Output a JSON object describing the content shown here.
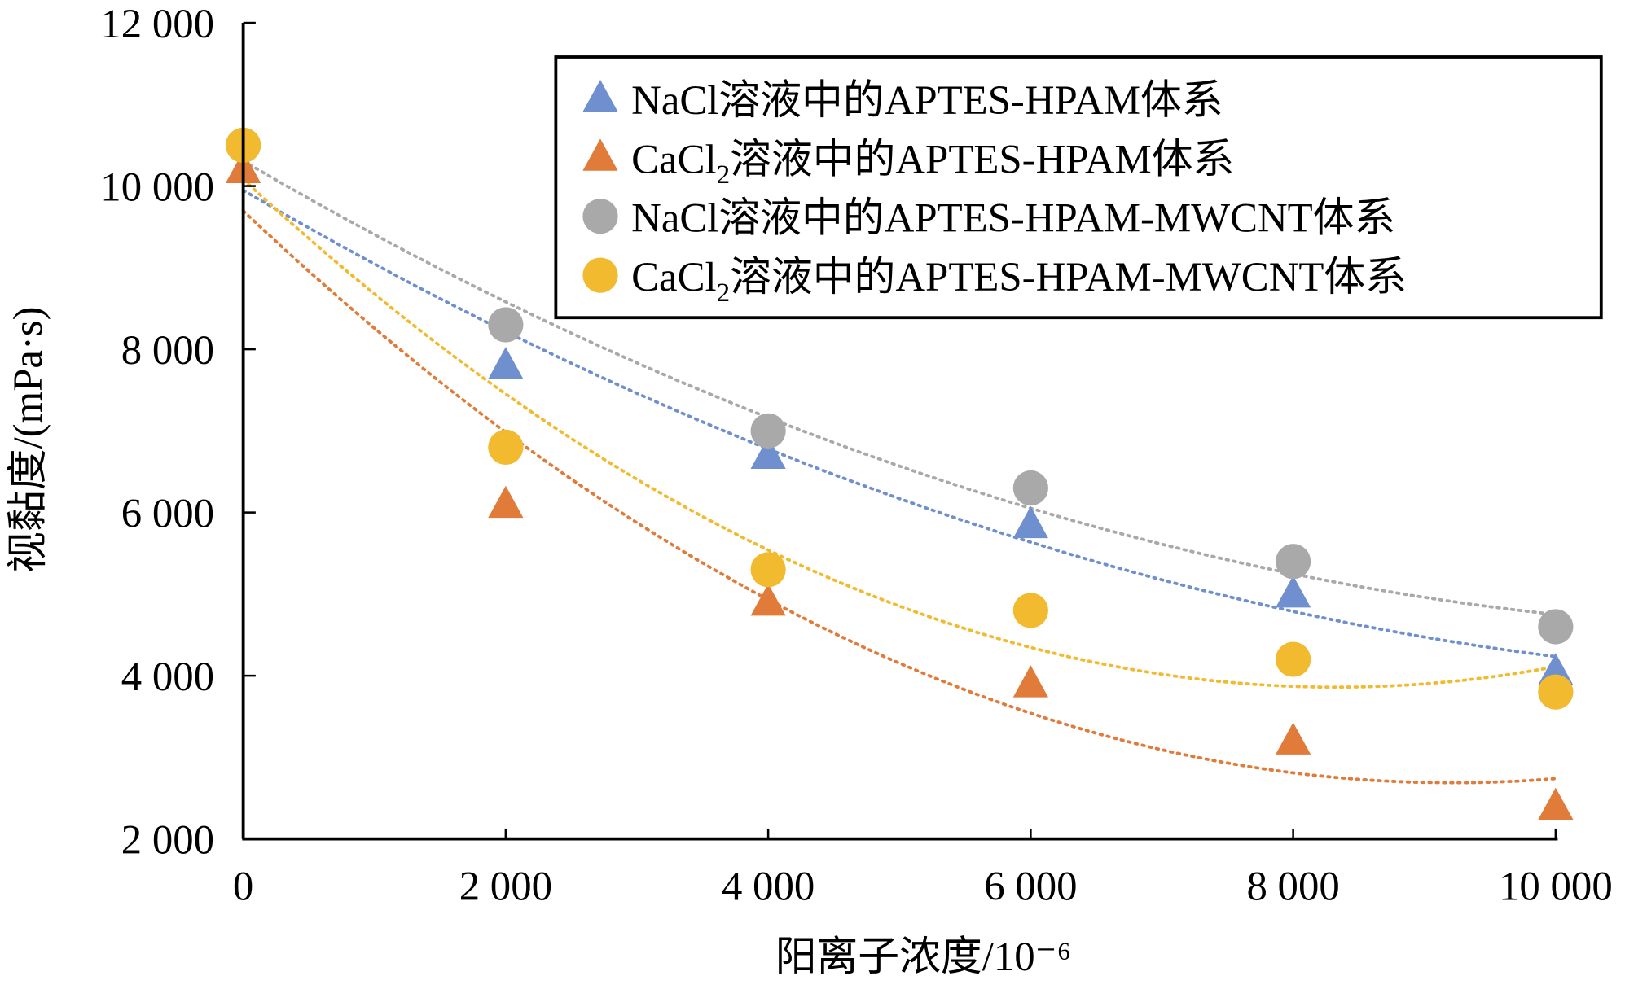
{
  "chart_data": {
    "type": "scatter",
    "title": "",
    "xlabel": "阳离子浓度/10⁻⁶",
    "ylabel": "视黏度/(mPa·s)",
    "xlim": [
      0,
      10000
    ],
    "ylim": [
      2000,
      12000
    ],
    "x_ticks": [
      0,
      2000,
      4000,
      6000,
      8000,
      10000
    ],
    "x_tick_labels": [
      "0",
      "2 000",
      "4 000",
      "6 000",
      "8 000",
      "10 000"
    ],
    "y_ticks": [
      2000,
      4000,
      6000,
      8000,
      10000,
      12000
    ],
    "y_tick_labels": [
      "2 000",
      "4 000",
      "6 000",
      "8 000",
      "10 000",
      "12 000"
    ],
    "grid": false,
    "legend_placement": "top-right",
    "trendline": "polynomial order 2, dotted",
    "x": [
      0,
      2000,
      4000,
      6000,
      8000,
      10000
    ],
    "series": [
      {
        "name": "NaCl溶液中的APTES-HPAM体系",
        "name_parts": [
          "NaCl",
          "",
          "溶液中的APTES-HPAM体系"
        ],
        "marker": "triangle",
        "color": "#6F8FCF",
        "values": [
          10200,
          7800,
          6700,
          5850,
          5000,
          4050
        ]
      },
      {
        "name": "CaCl2溶液中的APTES-HPAM体系",
        "name_parts": [
          "CaCl",
          "2",
          "溶液中的APTES-HPAM体系"
        ],
        "marker": "triangle",
        "color": "#E07B39",
        "values": [
          10200,
          6100,
          4900,
          3900,
          3200,
          2400
        ]
      },
      {
        "name": "NaCl溶液中的APTES-HPAM-MWCNT体系",
        "name_parts": [
          "NaCl",
          "",
          "溶液中的APTES-HPAM-MWCNT体系"
        ],
        "marker": "circle",
        "color": "#A9A9A9",
        "values": [
          10500,
          8300,
          7000,
          6300,
          5400,
          4600
        ]
      },
      {
        "name": "CaCl2溶液中的APTES-HPAM-MWCNT体系",
        "name_parts": [
          "CaCl",
          "2",
          "溶液中的APTES-HPAM-MWCNT体系"
        ],
        "marker": "circle",
        "color": "#F2BA2F",
        "values": [
          10500,
          6800,
          5300,
          4800,
          4200,
          3800
        ]
      }
    ]
  }
}
